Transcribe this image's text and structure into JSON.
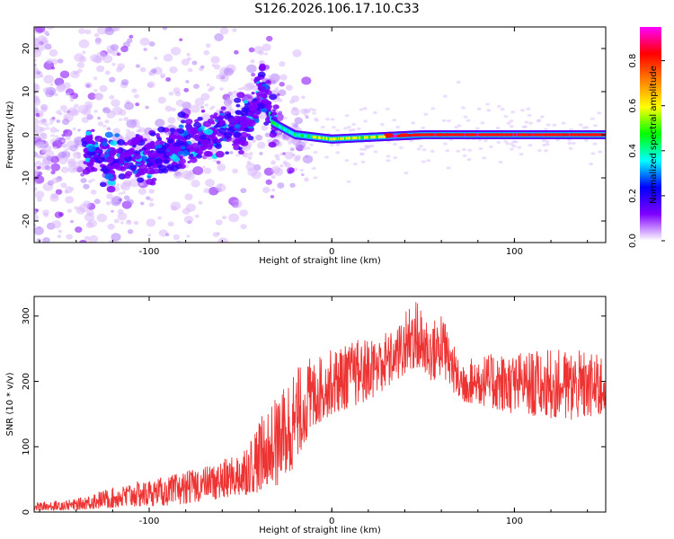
{
  "title": "S126.2026.106.17.10.C33",
  "chart_data": [
    {
      "type": "heatmap",
      "title": "S126.2026.106.17.10.C33",
      "xlabel": "Height of straight line (km)",
      "ylabel": "Frequency (Hz)",
      "xlim": [
        -163,
        150
      ],
      "ylim": [
        -25,
        25
      ],
      "x_ticks": [
        -100,
        0,
        100
      ],
      "y_ticks": [
        -20,
        -10,
        0,
        10,
        20
      ],
      "colorbar": {
        "label": "Normalized spectral amplitude",
        "range": [
          0,
          0.95
        ],
        "ticks": [
          0.0,
          0.2,
          0.4,
          0.6,
          0.8
        ],
        "colormap": [
          "#ffffff",
          "#7f00ff",
          "#0000ff",
          "#00ffff",
          "#00ff00",
          "#ffff00",
          "#ff8000",
          "#ff0000",
          "#ff00ff"
        ]
      },
      "ridge": [
        {
          "x": -160,
          "freq": 0
        },
        {
          "x": -120,
          "freq": -6
        },
        {
          "x": -100,
          "freq": -5
        },
        {
          "x": -80,
          "freq": -2
        },
        {
          "x": -60,
          "freq": 1
        },
        {
          "x": -45,
          "freq": 3
        },
        {
          "x": -38,
          "freq": 12
        },
        {
          "x": -33,
          "freq": 3
        },
        {
          "x": -20,
          "freq": 0
        },
        {
          "x": 0,
          "freq": -1
        },
        {
          "x": 50,
          "freq": 0
        },
        {
          "x": 100,
          "freq": 0
        },
        {
          "x": 150,
          "freq": 0
        }
      ]
    },
    {
      "type": "line",
      "xlabel": "Height of straight line (km)",
      "ylabel": "SNR (10 * v/v)",
      "xlim": [
        -163,
        150
      ],
      "ylim": [
        0,
        330
      ],
      "x_ticks": [
        -100,
        0,
        100
      ],
      "y_ticks": [
        0,
        100,
        200,
        300
      ],
      "series": [
        {
          "name": "SNR",
          "color": "#ee3333",
          "envelope": [
            {
              "x": -163,
              "low": 2,
              "high": 15
            },
            {
              "x": -140,
              "low": 3,
              "high": 20
            },
            {
              "x": -130,
              "low": 5,
              "high": 30
            },
            {
              "x": -110,
              "low": 8,
              "high": 45
            },
            {
              "x": -90,
              "low": 10,
              "high": 55
            },
            {
              "x": -70,
              "low": 15,
              "high": 70
            },
            {
              "x": -50,
              "low": 25,
              "high": 90
            },
            {
              "x": -40,
              "low": 30,
              "high": 140
            },
            {
              "x": -30,
              "low": 40,
              "high": 180
            },
            {
              "x": -20,
              "low": 70,
              "high": 220
            },
            {
              "x": -10,
              "low": 130,
              "high": 240
            },
            {
              "x": 0,
              "low": 150,
              "high": 250
            },
            {
              "x": 20,
              "low": 170,
              "high": 270
            },
            {
              "x": 35,
              "low": 200,
              "high": 280
            },
            {
              "x": 45,
              "low": 220,
              "high": 330
            },
            {
              "x": 55,
              "low": 200,
              "high": 290
            },
            {
              "x": 60,
              "low": 210,
              "high": 310
            },
            {
              "x": 70,
              "low": 170,
              "high": 230
            },
            {
              "x": 80,
              "low": 165,
              "high": 240
            },
            {
              "x": 100,
              "low": 150,
              "high": 245
            },
            {
              "x": 130,
              "low": 140,
              "high": 250
            },
            {
              "x": 150,
              "low": 150,
              "high": 240
            }
          ]
        }
      ]
    }
  ]
}
